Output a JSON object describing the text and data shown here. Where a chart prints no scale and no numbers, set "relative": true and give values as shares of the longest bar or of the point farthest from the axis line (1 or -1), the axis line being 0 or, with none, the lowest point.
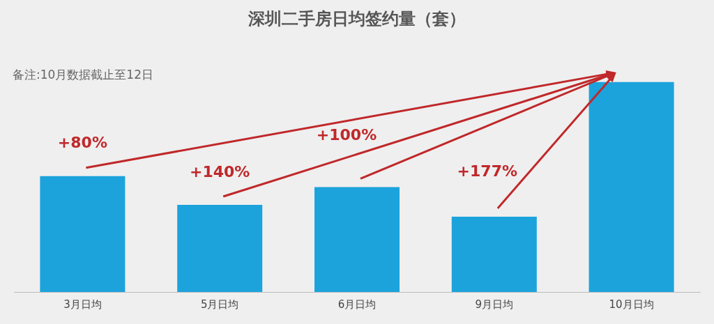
{
  "chart_data": {
    "type": "bar",
    "title": "深圳二手房日均签约量（套）",
    "relative": true,
    "categories": [
      "3月日均",
      "5月日均",
      "6月日均",
      "9月日均",
      "10月日均"
    ],
    "values": [
      0.552,
      0.415,
      0.5,
      0.359,
      1
    ],
    "color": "#1ca3dc",
    "grid": false,
    "legend": false,
    "annotations": [
      "备注:10月数据截止至12日",
      {
        "text": "+80%",
        "x": "3月日均",
        "y": 0.552
      },
      {
        "text": "+140%",
        "x": "5月日均",
        "y": 0.415
      },
      {
        "text": "+100%",
        "x": "6月日均",
        "y": 0.5
      },
      {
        "text": "+177%",
        "x": "9月日均",
        "y": 0.359
      }
    ]
  }
}
